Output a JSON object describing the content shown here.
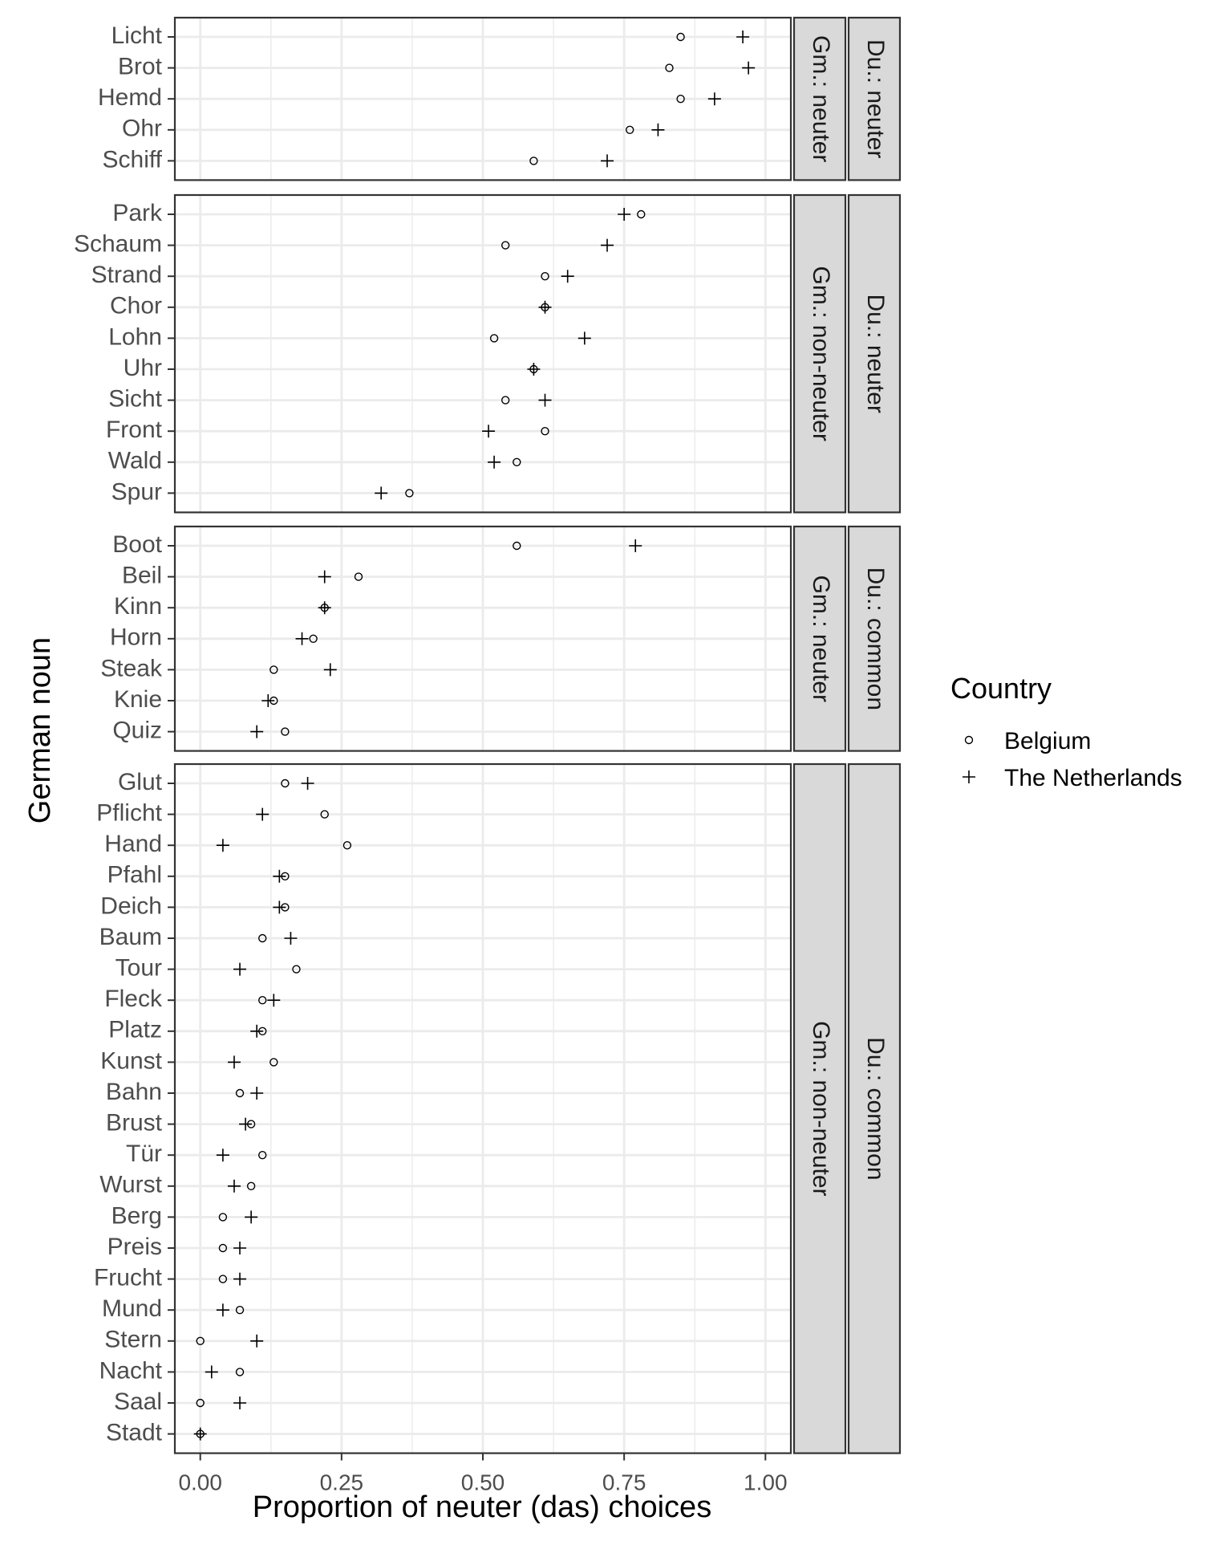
{
  "chart_data": {
    "type": "scatter",
    "xlabel": "Proportion of neuter (das) choices",
    "ylabel": "German noun",
    "xlim": [
      -0.045,
      1.045
    ],
    "x_ticks": [
      "0.00",
      "0.25",
      "0.50",
      "0.75",
      "1.00"
    ],
    "x_tick_values": [
      0,
      0.25,
      0.5,
      0.75,
      1.0
    ],
    "grid": true,
    "legend": {
      "title": "Country",
      "placement": "right",
      "entries": [
        {
          "name": "Belgium",
          "shape": "circle"
        },
        {
          "name": "The Netherlands",
          "shape": "plus"
        }
      ]
    },
    "series_names": [
      "Belgium",
      "The Netherlands"
    ],
    "panels": [
      {
        "strip_inner": "Gm.: neuter",
        "strip_outer": "Du.: neuter",
        "nouns": [
          "Licht",
          "Brot",
          "Hemd",
          "Ohr",
          "Schiff"
        ],
        "belgium": [
          0.85,
          0.83,
          0.85,
          0.76,
          0.59
        ],
        "netherlands": [
          0.96,
          0.97,
          0.91,
          0.81,
          0.72
        ]
      },
      {
        "strip_inner": "Gm.: non-neuter",
        "strip_outer": "Du.: neuter",
        "nouns": [
          "Park",
          "Schaum",
          "Strand",
          "Chor",
          "Lohn",
          "Uhr",
          "Sicht",
          "Front",
          "Wald",
          "Spur"
        ],
        "belgium": [
          0.78,
          0.54,
          0.61,
          0.61,
          0.52,
          0.59,
          0.54,
          0.61,
          0.56,
          0.37
        ],
        "netherlands": [
          0.75,
          0.72,
          0.65,
          0.61,
          0.68,
          0.59,
          0.61,
          0.51,
          0.52,
          0.32
        ]
      },
      {
        "strip_inner": "Gm.: neuter",
        "strip_outer": "Du.: common",
        "nouns": [
          "Boot",
          "Beil",
          "Kinn",
          "Horn",
          "Steak",
          "Knie",
          "Quiz"
        ],
        "belgium": [
          0.56,
          0.28,
          0.22,
          0.2,
          0.13,
          0.13,
          0.15
        ],
        "netherlands": [
          0.77,
          0.22,
          0.22,
          0.18,
          0.23,
          0.12,
          0.1
        ]
      },
      {
        "strip_inner": "Gm.: non-neuter",
        "strip_outer": "Du.: common",
        "nouns": [
          "Glut",
          "Pflicht",
          "Hand",
          "Pfahl",
          "Deich",
          "Baum",
          "Tour",
          "Fleck",
          "Platz",
          "Kunst",
          "Bahn",
          "Brust",
          "Tür",
          "Wurst",
          "Berg",
          "Preis",
          "Frucht",
          "Mund",
          "Stern",
          "Nacht",
          "Saal",
          "Stadt"
        ],
        "belgium": [
          0.15,
          0.22,
          0.26,
          0.15,
          0.15,
          0.11,
          0.17,
          0.11,
          0.11,
          0.13,
          0.07,
          0.09,
          0.11,
          0.09,
          0.04,
          0.04,
          0.04,
          0.07,
          0.0,
          0.07,
          0.0,
          0.0
        ],
        "netherlands": [
          0.19,
          0.11,
          0.04,
          0.14,
          0.14,
          0.16,
          0.07,
          0.13,
          0.1,
          0.06,
          0.1,
          0.08,
          0.04,
          0.06,
          0.09,
          0.07,
          0.07,
          0.04,
          0.1,
          0.02,
          0.07,
          0.0
        ]
      }
    ]
  },
  "colors": {
    "panel_border": "#333333",
    "grid": "#ebebeb",
    "strip_fill": "#d9d9d9",
    "point": "#000000",
    "tick_text": "#4d4d4d"
  }
}
